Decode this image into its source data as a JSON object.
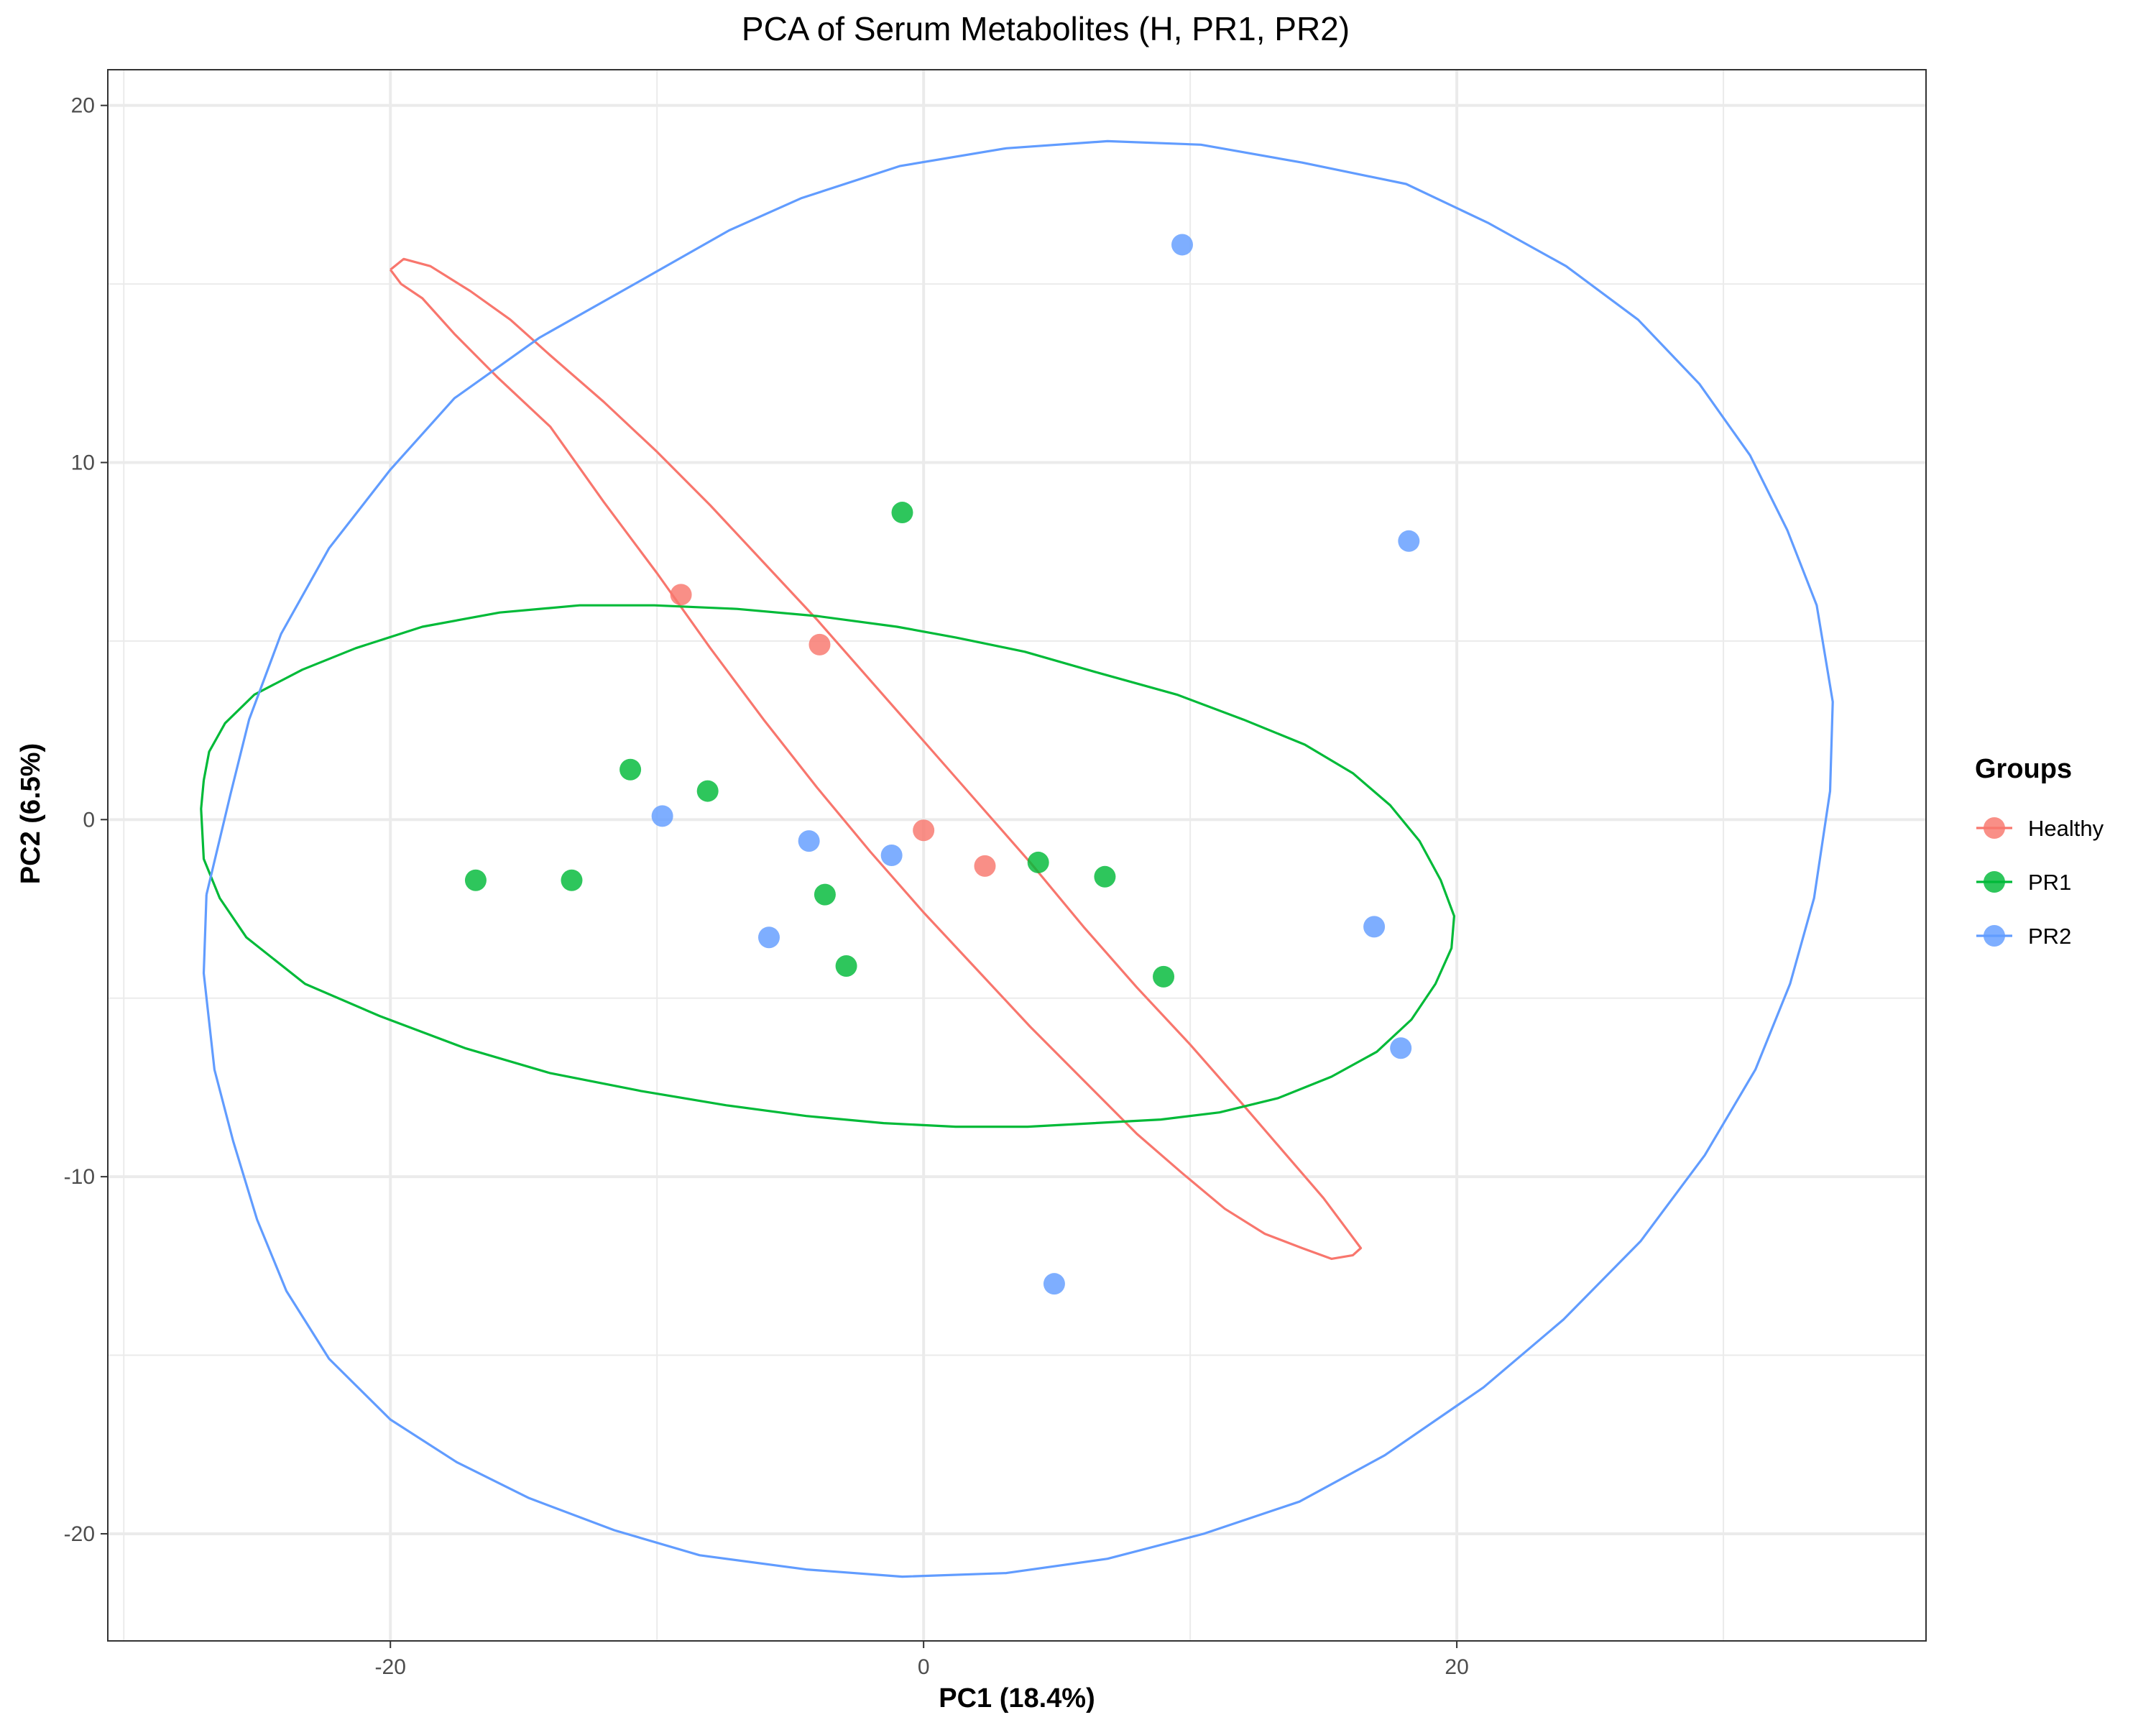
{
  "chart_data": {
    "type": "scatter",
    "title": "PCA of Serum Metabolites (H, PR1, PR2)",
    "xlabel": "PC1 (18.4%)",
    "ylabel": "PC2 (6.5%)",
    "xlim": [
      -30.6,
      37.6
    ],
    "ylim": [
      -23.0,
      21.0
    ],
    "x_ticks": [
      -20,
      0,
      20
    ],
    "y_ticks": [
      -20,
      -10,
      0,
      10,
      20
    ],
    "x_tick_labels": [
      "-20",
      "0",
      "20"
    ],
    "y_tick_labels": [
      "-20",
      "-10",
      "0",
      "10",
      "20"
    ],
    "grid": true,
    "legend_title": "Groups",
    "legend_position": "right",
    "series": [
      {
        "name": "Healthy",
        "color": "#F8766D",
        "points": [
          [
            -9.1,
            6.3
          ],
          [
            -3.9,
            4.9
          ],
          [
            0.0,
            -0.3
          ],
          [
            2.3,
            -1.3
          ]
        ],
        "ellipse": [
          [
            -20,
            15.4
          ],
          [
            -19.5,
            15.7
          ],
          [
            -18.5,
            15.5
          ],
          [
            -17,
            14.8
          ],
          [
            -15.5,
            14.0
          ],
          [
            -14,
            13.0
          ],
          [
            -12,
            11.7
          ],
          [
            -10,
            10.3
          ],
          [
            -8,
            8.8
          ],
          [
            -6,
            7.2
          ],
          [
            -4,
            5.6
          ],
          [
            -2,
            3.9
          ],
          [
            0,
            2.2
          ],
          [
            2,
            0.5
          ],
          [
            4,
            -1.2
          ],
          [
            6,
            -3.0
          ],
          [
            8,
            -4.7
          ],
          [
            10,
            -6.3
          ],
          [
            12,
            -8.0
          ],
          [
            13.5,
            -9.3
          ],
          [
            15,
            -10.6
          ],
          [
            15.9,
            -11.5
          ],
          [
            16.4,
            -12.0
          ],
          [
            16.1,
            -12.2
          ],
          [
            15.3,
            -12.3
          ],
          [
            14.2,
            -12.0
          ],
          [
            12.8,
            -11.6
          ],
          [
            11.3,
            -10.9
          ],
          [
            9.7,
            -9.9
          ],
          [
            8,
            -8.8
          ],
          [
            6,
            -7.3
          ],
          [
            4,
            -5.8
          ],
          [
            2,
            -4.2
          ],
          [
            0,
            -2.6
          ],
          [
            -2,
            -0.9
          ],
          [
            -4,
            0.9
          ],
          [
            -6,
            2.8
          ],
          [
            -8,
            4.8
          ],
          [
            -10,
            6.9
          ],
          [
            -12,
            8.9
          ],
          [
            -14,
            11.0
          ],
          [
            -16,
            12.4
          ],
          [
            -17.6,
            13.6
          ],
          [
            -18.8,
            14.6
          ],
          [
            -19.6,
            15.0
          ],
          [
            -20,
            15.4
          ]
        ]
      },
      {
        "name": "PR1",
        "color": "#00BA38",
        "points": [
          [
            -16.8,
            -1.7
          ],
          [
            -13.2,
            -1.7
          ],
          [
            -11.0,
            1.4
          ],
          [
            -8.1,
            0.8
          ],
          [
            -0.8,
            8.6
          ],
          [
            -3.7,
            -2.1
          ],
          [
            -2.9,
            -4.1
          ],
          [
            4.3,
            -1.2
          ],
          [
            6.8,
            -1.6
          ],
          [
            9.0,
            -4.4
          ]
        ],
        "ellipse": [
          [
            -27,
            1.1
          ],
          [
            -26.8,
            1.9
          ],
          [
            -26.2,
            2.7
          ],
          [
            -25.1,
            3.5
          ],
          [
            -23.3,
            4.2
          ],
          [
            -21.3,
            4.8
          ],
          [
            -18.8,
            5.4
          ],
          [
            -15.9,
            5.8
          ],
          [
            -12.9,
            6.0
          ],
          [
            -10.1,
            6.0
          ],
          [
            -7,
            5.9
          ],
          [
            -4,
            5.7
          ],
          [
            -1,
            5.4
          ],
          [
            1.2,
            5.1
          ],
          [
            3.8,
            4.7
          ],
          [
            6.6,
            4.1
          ],
          [
            9.5,
            3.5
          ],
          [
            12,
            2.8
          ],
          [
            14.3,
            2.1
          ],
          [
            16.1,
            1.3
          ],
          [
            17.5,
            0.4
          ],
          [
            18.6,
            -0.6
          ],
          [
            19.4,
            -1.7
          ],
          [
            19.9,
            -2.7
          ],
          [
            19.8,
            -3.6
          ],
          [
            19.2,
            -4.6
          ],
          [
            18.3,
            -5.6
          ],
          [
            17,
            -6.5
          ],
          [
            15.3,
            -7.2
          ],
          [
            13.3,
            -7.8
          ],
          [
            11.1,
            -8.2
          ],
          [
            8.9,
            -8.4
          ],
          [
            6.4,
            -8.5
          ],
          [
            3.9,
            -8.6
          ],
          [
            1.2,
            -8.6
          ],
          [
            -1.5,
            -8.5
          ],
          [
            -4.4,
            -8.3
          ],
          [
            -7.4,
            -8.0
          ],
          [
            -10.6,
            -7.6
          ],
          [
            -14,
            -7.1
          ],
          [
            -17.2,
            -6.4
          ],
          [
            -20.4,
            -5.5
          ],
          [
            -23.2,
            -4.6
          ],
          [
            -25.4,
            -3.3
          ],
          [
            -26.4,
            -2.2
          ],
          [
            -27,
            -1.1
          ],
          [
            -27.1,
            0.3
          ],
          [
            -27,
            1.1
          ]
        ]
      },
      {
        "name": "PR2",
        "color": "#619CFF",
        "points": [
          [
            9.7,
            16.1
          ],
          [
            18.2,
            7.8
          ],
          [
            -9.8,
            0.1
          ],
          [
            -4.3,
            -0.6
          ],
          [
            -1.2,
            -1.0
          ],
          [
            -5.8,
            -3.3
          ],
          [
            16.9,
            -3.0
          ],
          [
            17.9,
            -6.4
          ],
          [
            4.9,
            -13.0
          ]
        ],
        "ellipse": [
          [
            -26.9,
            -2.1
          ],
          [
            -27,
            -4.3
          ],
          [
            -26.6,
            -7.0
          ],
          [
            -25.9,
            -9.0
          ],
          [
            -25,
            -11.2
          ],
          [
            -23.9,
            -13.2
          ],
          [
            -22.3,
            -15.1
          ],
          [
            -20,
            -16.8
          ],
          [
            -17.5,
            -18.0
          ],
          [
            -14.8,
            -19.0
          ],
          [
            -11.6,
            -19.9
          ],
          [
            -8.4,
            -20.6
          ],
          [
            -4.4,
            -21.0
          ],
          [
            -0.8,
            -21.2
          ],
          [
            3.1,
            -21.1
          ],
          [
            6.9,
            -20.7
          ],
          [
            10.5,
            -20.0
          ],
          [
            14.1,
            -19.1
          ],
          [
            17.3,
            -17.8
          ],
          [
            21,
            -15.9
          ],
          [
            24,
            -14.0
          ],
          [
            26.9,
            -11.8
          ],
          [
            29.3,
            -9.4
          ],
          [
            31.2,
            -7.0
          ],
          [
            32.5,
            -4.6
          ],
          [
            33.4,
            -2.2
          ],
          [
            34,
            0.8
          ],
          [
            34.1,
            3.3
          ],
          [
            33.5,
            6.0
          ],
          [
            32.4,
            8.1
          ],
          [
            31,
            10.2
          ],
          [
            29.1,
            12.2
          ],
          [
            26.8,
            14.0
          ],
          [
            24.1,
            15.5
          ],
          [
            21.2,
            16.7
          ],
          [
            18.1,
            17.8
          ],
          [
            14.2,
            18.4
          ],
          [
            10.4,
            18.9
          ],
          [
            6.9,
            19.0
          ],
          [
            3.1,
            18.8
          ],
          [
            -0.9,
            18.3
          ],
          [
            -4.6,
            17.4
          ],
          [
            -7.3,
            16.5
          ],
          [
            -10.6,
            15.1
          ],
          [
            -14.4,
            13.5
          ],
          [
            -17.6,
            11.8
          ],
          [
            -20,
            9.8
          ],
          [
            -22.3,
            7.6
          ],
          [
            -24.1,
            5.2
          ],
          [
            -25.3,
            2.8
          ],
          [
            -26,
            0.7
          ],
          [
            -26.9,
            -2.1
          ]
        ]
      }
    ]
  }
}
